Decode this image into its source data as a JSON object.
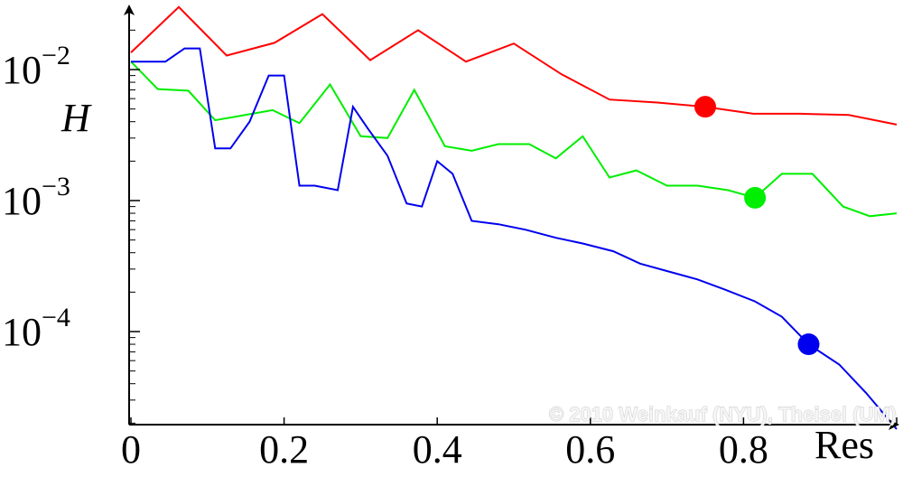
{
  "chart_data": {
    "type": "line",
    "xlabel": "Res",
    "ylabel": "H",
    "xlim": [
      0,
      1
    ],
    "ylim": [
      2e-05,
      0.03
    ],
    "yscale": "log",
    "grid": false,
    "x_ticks": [
      {
        "value": 0,
        "label": "0"
      },
      {
        "value": 0.2,
        "label": "0.2"
      },
      {
        "value": 0.4,
        "label": "0.4"
      },
      {
        "value": 0.6,
        "label": "0.6"
      },
      {
        "value": 0.8,
        "label": "0.8"
      }
    ],
    "y_ticks": [
      {
        "value": 0.01,
        "base": "10",
        "exponent": "−2"
      },
      {
        "value": 0.001,
        "base": "10",
        "exponent": "−3"
      },
      {
        "value": 0.0001,
        "base": "10",
        "exponent": "−4"
      }
    ],
    "series": [
      {
        "color": "#ff0000",
        "x": [
          0,
          0.0625,
          0.125,
          0.1875,
          0.25,
          0.3125,
          0.375,
          0.4375,
          0.5,
          0.5625,
          0.625,
          0.6875,
          0.75,
          0.8125,
          0.875,
          0.9375,
          1.0
        ],
        "y": [
          0.0135,
          0.03,
          0.0128,
          0.016,
          0.0265,
          0.0118,
          0.02,
          0.0115,
          0.0158,
          0.0092,
          0.0059,
          0.0056,
          0.0052,
          0.0046,
          0.0046,
          0.0045,
          0.0038
        ],
        "marker": {
          "x": 0.75,
          "y": 0.0052
        }
      },
      {
        "color": "#00ee00",
        "x": [
          0,
          0.035,
          0.075,
          0.11,
          0.185,
          0.22,
          0.26,
          0.3,
          0.335,
          0.37,
          0.41,
          0.445,
          0.48,
          0.52,
          0.555,
          0.59,
          0.625,
          0.66,
          0.7,
          0.74,
          0.78,
          0.815,
          0.85,
          0.89,
          0.93,
          0.965,
          1.0
        ],
        "y": [
          0.0115,
          0.0071,
          0.0069,
          0.0041,
          0.0049,
          0.0039,
          0.0077,
          0.0031,
          0.003,
          0.007,
          0.0026,
          0.0024,
          0.0027,
          0.0027,
          0.0021,
          0.0031,
          0.0015,
          0.0017,
          0.0013,
          0.0013,
          0.0012,
          0.00105,
          0.0016,
          0.0016,
          0.0009,
          0.00076,
          0.0008
        ],
        "marker": {
          "x": 0.815,
          "y": 0.00105
        }
      },
      {
        "color": "#0000ee",
        "x": [
          0,
          0.045,
          0.07,
          0.09,
          0.11,
          0.13,
          0.155,
          0.18,
          0.2,
          0.22,
          0.24,
          0.27,
          0.29,
          0.31,
          0.335,
          0.36,
          0.38,
          0.4,
          0.42,
          0.445,
          0.48,
          0.515,
          0.555,
          0.59,
          0.63,
          0.665,
          0.7,
          0.74,
          0.775,
          0.815,
          0.85,
          0.885,
          0.925,
          0.96,
          1.0
        ],
        "y": [
          0.0115,
          0.0115,
          0.0145,
          0.0145,
          0.0025,
          0.0025,
          0.004,
          0.009,
          0.009,
          0.0013,
          0.0013,
          0.0012,
          0.0052,
          0.0035,
          0.0022,
          0.00095,
          0.0009,
          0.002,
          0.0016,
          0.0007,
          0.00066,
          0.0006,
          0.00052,
          0.00047,
          0.00041,
          0.00033,
          0.00029,
          0.00025,
          0.00021,
          0.00017,
          0.00013,
          8e-05,
          5.6e-05,
          3.4e-05,
          1.8e-05
        ],
        "marker": {
          "x": 0.885,
          "y": 8e-05
        }
      }
    ],
    "watermark": "© 2010 Weinkauf (NYU), Theisel (UM)"
  }
}
